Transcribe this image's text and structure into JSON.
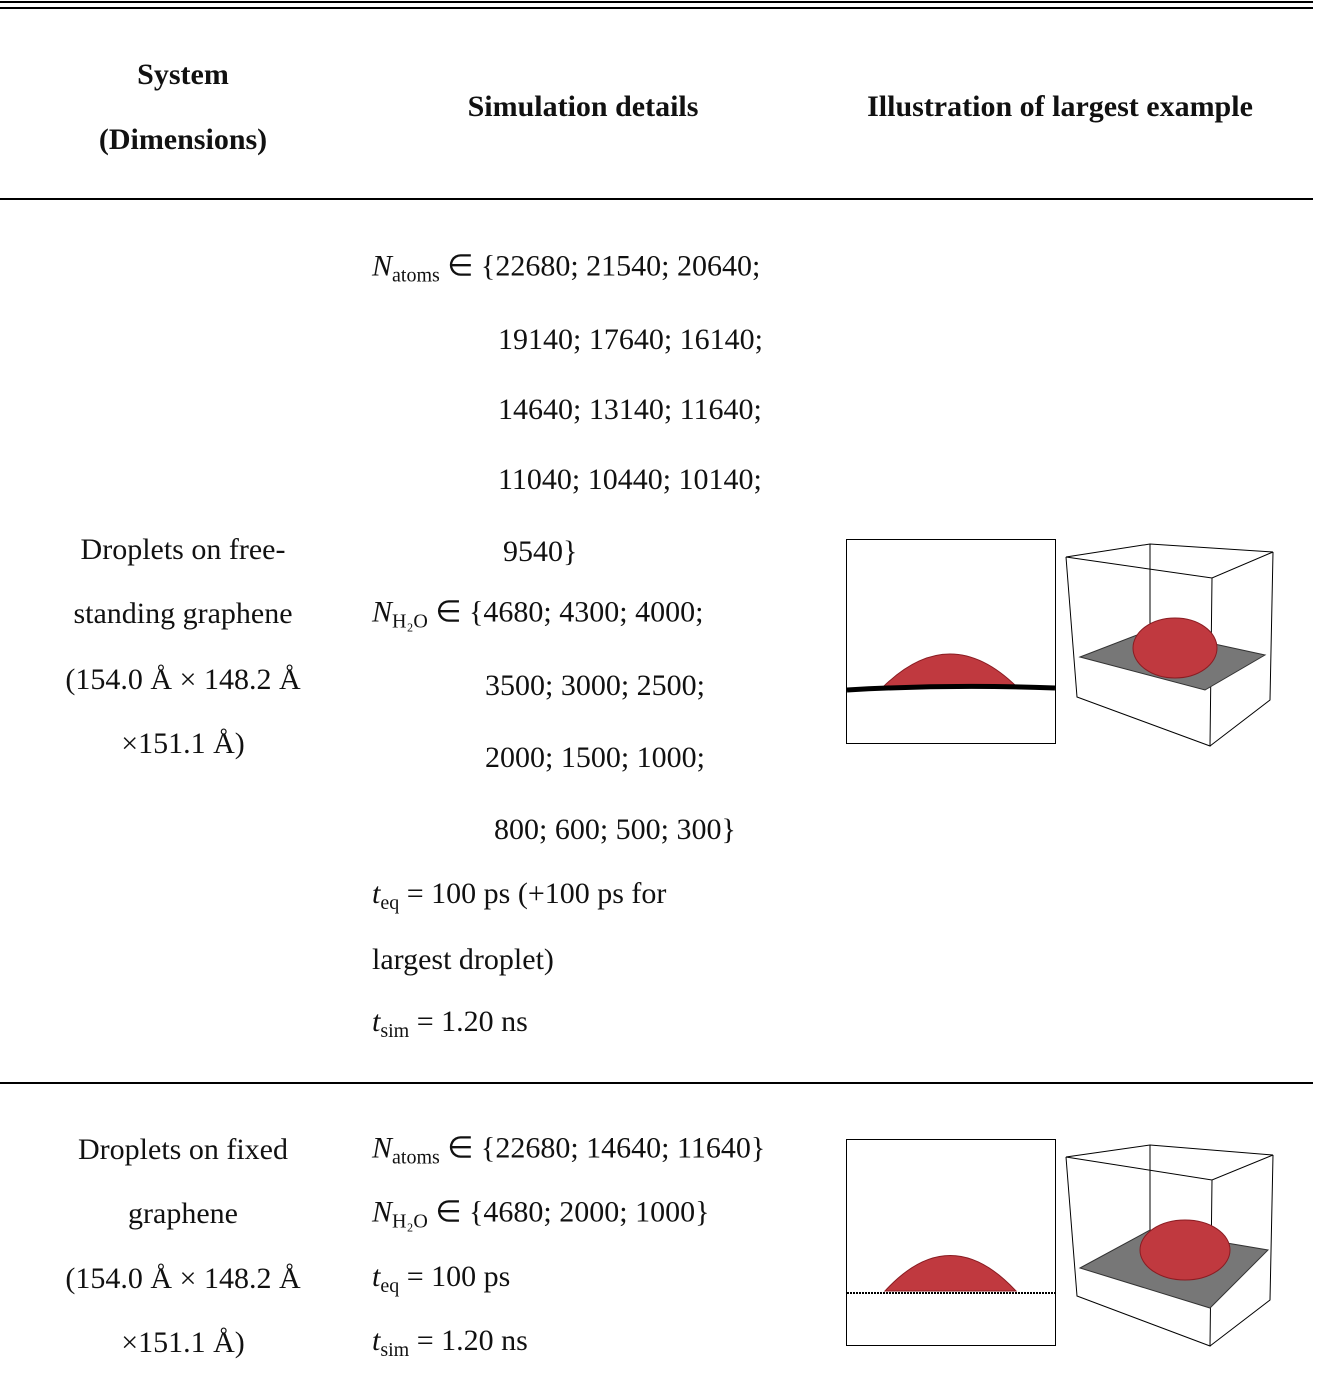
{
  "header": {
    "columns": [
      [
        "System",
        "(Dimensions)"
      ],
      [
        "Simulation details"
      ],
      [
        "Illustration of largest example"
      ]
    ]
  },
  "rows": [
    {
      "system": [
        "Droplets on free-",
        "standing graphene",
        "(154.0 Å × 148.2 Å",
        "×151.1 Å)"
      ],
      "details": [
        {
          "var": "N",
          "sub": "atoms",
          "text": "∈ {22680; 21540; 20640;"
        },
        {
          "text": "19140; 17640; 16140;"
        },
        {
          "text": "14640; 13140; 11640;"
        },
        {
          "text": "11040; 10440; 10140;"
        },
        {
          "text": "9540}"
        },
        {
          "var": "N",
          "sub": "H₂O",
          "text": "∈ {4680; 4300; 4000;"
        },
        {
          "text": "3500; 3000; 2500;"
        },
        {
          "text": "2000; 1500; 1000;"
        },
        {
          "text": "800; 600; 500; 300}"
        },
        {
          "var": "t",
          "sub": "eq",
          "text": "= 100 ps (+100 ps for"
        },
        {
          "text": "largest droplet)"
        },
        {
          "var": "t",
          "sub": "sim",
          "text": "= 1.20 ns"
        }
      ]
    },
    {
      "system": [
        "Droplets on fixed",
        "graphene",
        "(154.0 Å × 148.2 Å",
        "×151.1 Å)"
      ],
      "details": [
        {
          "var": "N",
          "sub": "atoms",
          "text": "∈ {22680; 14640; 11640}"
        },
        {
          "var": "N",
          "sub": "H₂O",
          "text": "∈ {4680; 2000; 1000}"
        },
        {
          "var": "t",
          "sub": "eq",
          "text": "= 100 ps"
        },
        {
          "var": "t",
          "sub": "sim",
          "text": "= 1.20 ns"
        }
      ]
    }
  ]
}
